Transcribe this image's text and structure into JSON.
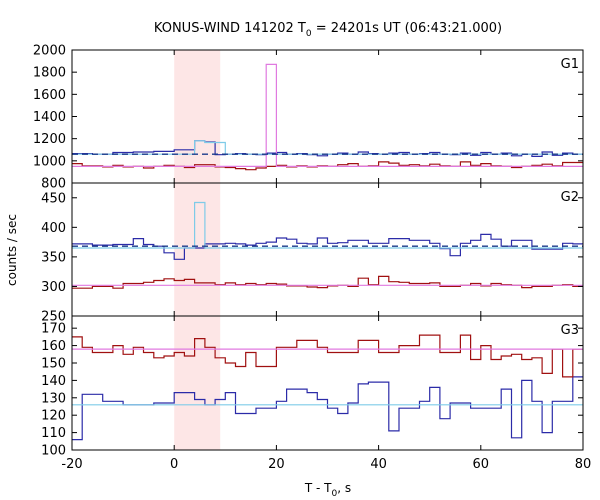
{
  "chart_data": {
    "type": "line",
    "title_prefix": "KONUS-WIND 141202 T",
    "title_sub": "0",
    "title_suffix": " = 24201s UT (06:43:21.000)",
    "xlabel_prefix": "T - T",
    "xlabel_sub": "0",
    "xlabel_suffix": ", s",
    "ylabel": "counts / sec",
    "xlim": [
      -20,
      80
    ],
    "xticks": [
      -20,
      0,
      20,
      40,
      60,
      80
    ],
    "highlight_x": [
      0,
      9
    ],
    "colors": {
      "highlight": "#fde6e6",
      "dark_blue": "#2b2ba8",
      "dark_red": "#a01010",
      "light_blue": "#7ecbe8",
      "pink": "#e07ae0",
      "dashed": "#1a3a8a"
    },
    "panels": [
      {
        "label": "G1",
        "ylim": [
          800,
          2000
        ],
        "yticks": [
          800,
          1000,
          1200,
          1400,
          1600,
          1800,
          2000
        ],
        "series": [
          {
            "style": "dark_blue",
            "x0": -20,
            "dx": 2,
            "values": [
              1065,
              1065,
              1060,
              1060,
              1075,
              1075,
              1080,
              1080,
              1085,
              1085,
              1100,
              1100,
              1180,
              1170,
              1055,
              1060,
              1065,
              1060,
              1055,
              1070,
              1075,
              1060,
              1065,
              1055,
              1045,
              1060,
              1070,
              1060,
              1080,
              1065,
              1060,
              1070,
              1075,
              1060,
              1065,
              1075,
              1060,
              1055,
              1070,
              1050,
              1075,
              1060,
              1070,
              1045,
              1060,
              1040,
              1080,
              1050,
              1070,
              1060
            ]
          },
          {
            "style": "dark_red",
            "x0": -20,
            "dx": 2,
            "values": [
              975,
              955,
              955,
              945,
              960,
              945,
              950,
              935,
              950,
              960,
              950,
              940,
              965,
              965,
              945,
              940,
              930,
              920,
              935,
              950,
              960,
              945,
              955,
              945,
              955,
              950,
              965,
              975,
              950,
              955,
              990,
              980,
              960,
              965,
              955,
              970,
              955,
              950,
              990,
              960,
              975,
              955,
              950,
              940,
              950,
              960,
              970,
              955,
              985,
              985
            ]
          },
          {
            "style": "light_blue",
            "x0": -20,
            "dx": 2,
            "values": [
              1060,
              1060,
              1060,
              1060,
              1060,
              1060,
              1060,
              1060,
              1060,
              1060,
              1060,
              1060,
              1180,
              1165,
              1165,
              1060,
              1060,
              1060,
              1060,
              1060,
              1060,
              1060,
              1060,
              1060,
              1060,
              1060,
              1060,
              1060,
              1060,
              1060,
              1060,
              1060,
              1060,
              1060,
              1060,
              1060,
              1060,
              1060,
              1060,
              1060,
              1060,
              1060,
              1060,
              1060,
              1060,
              1060,
              1060,
              1060,
              1060,
              1060
            ]
          },
          {
            "style": "pink",
            "x0": -20,
            "dx": 2,
            "values": [
              950,
              950,
              950,
              950,
              950,
              950,
              950,
              950,
              950,
              950,
              950,
              950,
              950,
              950,
              950,
              950,
              950,
              950,
              950,
              1870,
              950,
              950,
              950,
              950,
              950,
              950,
              950,
              950,
              950,
              950,
              950,
              950,
              950,
              950,
              950,
              950,
              950,
              950,
              950,
              950,
              950,
              950,
              950,
              950,
              950,
              950,
              950,
              950,
              950,
              950
            ]
          },
          {
            "style": "dashed",
            "dash": true,
            "x": [
              -20,
              80
            ],
            "values": [
              1060,
              1060
            ]
          }
        ]
      },
      {
        "label": "G2",
        "ylim": [
          250,
          475
        ],
        "yticks": [
          250,
          300,
          350,
          400,
          450
        ],
        "series": [
          {
            "style": "dark_blue",
            "x0": -20,
            "dx": 2,
            "values": [
              372,
              372,
              370,
              370,
              371,
              371,
              381,
              371,
              368,
              357,
              346,
              365,
              365,
              372,
              372,
              373,
              372,
              370,
              373,
              375,
              382,
              380,
              373,
              372,
              382,
              373,
              374,
              378,
              378,
              373,
              373,
              381,
              381,
              378,
              378,
              373,
              364,
              352,
              373,
              378,
              388,
              380,
              368,
              378,
              378,
              363,
              363,
              363,
              373,
              372
            ]
          },
          {
            "style": "dark_red",
            "x0": -20,
            "dx": 2,
            "values": [
              297,
              297,
              300,
              300,
              297,
              305,
              305,
              307,
              310,
              313,
              310,
              312,
              306,
              306,
              303,
              306,
              303,
              305,
              303,
              305,
              304,
              301,
              301,
              299,
              298,
              301,
              302,
              300,
              314,
              303,
              317,
              308,
              307,
              305,
              305,
              306,
              300,
              300,
              302,
              305,
              301,
              305,
              303,
              302,
              298,
              300,
              300,
              302,
              303,
              300
            ]
          },
          {
            "style": "light_blue",
            "x0": -20,
            "dx": 2,
            "values": [
              365,
              365,
              365,
              365,
              365,
              365,
              365,
              365,
              365,
              365,
              365,
              365,
              442,
              365,
              365,
              365,
              365,
              365,
              365,
              365,
              365,
              365,
              365,
              365,
              365,
              365,
              365,
              365,
              365,
              365,
              365,
              365,
              365,
              365,
              365,
              365,
              365,
              365,
              365,
              365,
              365,
              365,
              365,
              365,
              365,
              365,
              365,
              365,
              365,
              365
            ]
          },
          {
            "style": "pink",
            "x0": -20,
            "dx": 2,
            "values": [
              302,
              302,
              302,
              302,
              302,
              302,
              302,
              302,
              302,
              302,
              302,
              302,
              302,
              302,
              302,
              302,
              302,
              302,
              302,
              302,
              302,
              302,
              302,
              302,
              302,
              302,
              302,
              302,
              302,
              302,
              302,
              302,
              302,
              302,
              302,
              302,
              302,
              302,
              302,
              302,
              302,
              302,
              302,
              302,
              302,
              302,
              302,
              302,
              302,
              302
            ]
          },
          {
            "style": "dashed",
            "dash": true,
            "x": [
              -20,
              80
            ],
            "values": [
              368,
              368
            ]
          }
        ]
      },
      {
        "label": "G3",
        "ylim": [
          100,
          177
        ],
        "yticks": [
          100,
          110,
          120,
          130,
          140,
          150,
          160,
          170
        ],
        "series": [
          {
            "style": "dark_blue",
            "x0": -20,
            "dx": 2,
            "values": [
              106,
              132,
              132,
              128,
              128,
              126,
              126,
              126,
              127,
              127,
              133,
              133,
              129,
              126,
              129,
              133,
              121,
              121,
              124,
              124,
              128,
              135,
              135,
              133,
              129,
              124,
              121,
              127,
              138,
              139,
              139,
              111,
              124,
              124,
              128,
              136,
              118,
              127,
              127,
              124,
              124,
              124,
              135,
              107,
              140,
              128,
              110,
              128,
              128,
              142
            ]
          },
          {
            "style": "dark_red",
            "x0": -20,
            "dx": 2,
            "values": [
              165,
              159,
              156,
              156,
              160,
              155,
              159,
              156,
              153,
              154,
              156,
              154,
              164,
              159,
              153,
              150,
              148,
              156,
              148,
              148,
              159,
              159,
              163,
              163,
              159,
              156,
              156,
              156,
              163,
              163,
              156,
              156,
              160,
              160,
              166,
              166,
              156,
              156,
              166,
              152,
              160,
              152,
              154,
              155,
              152,
              153,
              144,
              158,
              142,
              158
            ]
          },
          {
            "style": "light_blue",
            "x0": -20,
            "dx": 2,
            "values": [
              126,
              126,
              126,
              126,
              126,
              126,
              126,
              126,
              126,
              126,
              126,
              126,
              126,
              126,
              126,
              126,
              126,
              126,
              126,
              126,
              126,
              126,
              126,
              126,
              126,
              126,
              126,
              126,
              126,
              126,
              126,
              126,
              126,
              126,
              126,
              126,
              126,
              126,
              126,
              126,
              126,
              126,
              126,
              126,
              126,
              126,
              126,
              126,
              126,
              126
            ]
          },
          {
            "style": "pink",
            "x0": -20,
            "dx": 2,
            "values": [
              158,
              158,
              158,
              158,
              158,
              158,
              158,
              158,
              158,
              158,
              158,
              158,
              158,
              158,
              158,
              158,
              158,
              158,
              158,
              158,
              158,
              158,
              158,
              158,
              158,
              158,
              158,
              158,
              158,
              158,
              158,
              158,
              158,
              158,
              158,
              158,
              158,
              158,
              158,
              158,
              158,
              158,
              158,
              158,
              158,
              158,
              158,
              158,
              158,
              158
            ]
          }
        ]
      }
    ]
  }
}
